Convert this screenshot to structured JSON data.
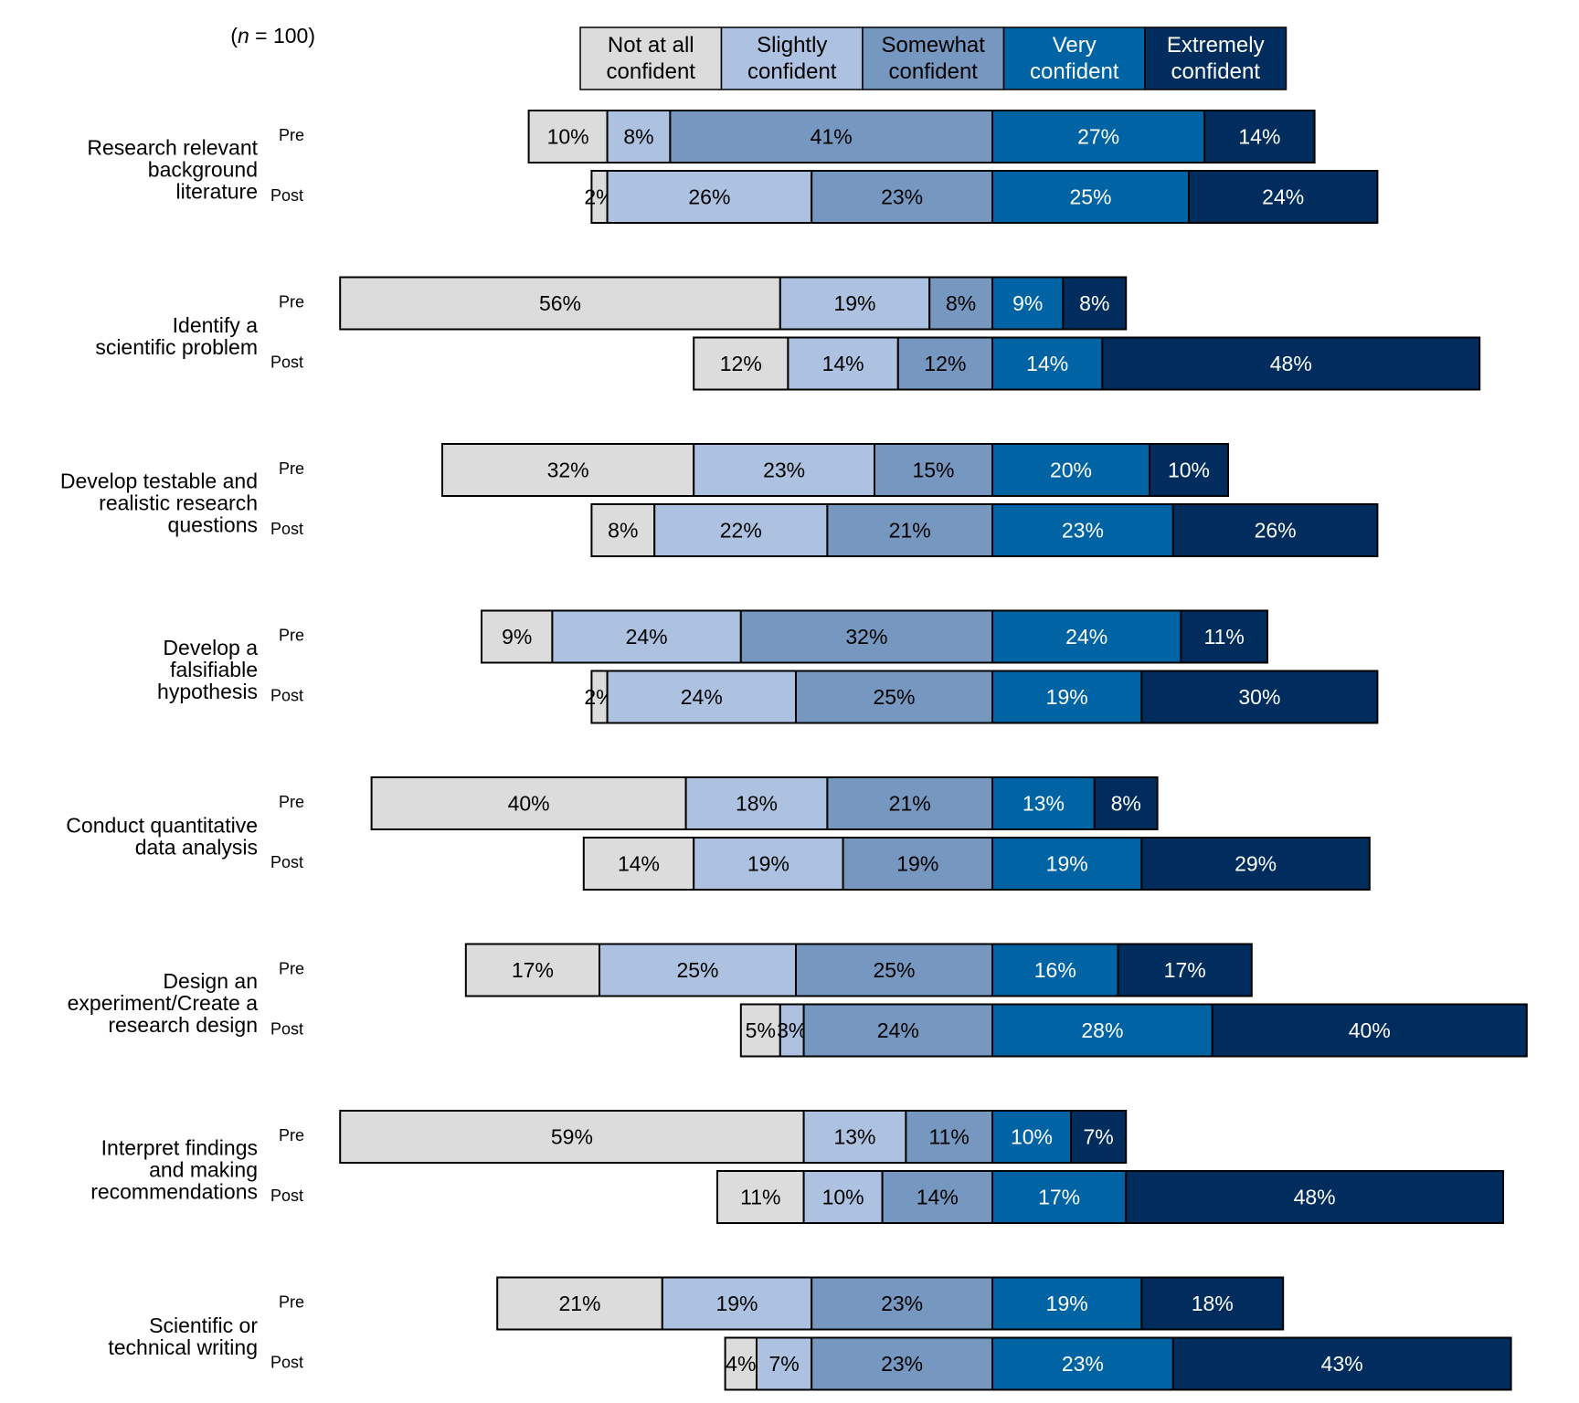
{
  "chart_data": {
    "type": "bar",
    "orientation": "horizontal",
    "stacked": true,
    "diverging": true,
    "sample_note": "(n = 100)",
    "legend": {
      "placement": "top",
      "entries": [
        {
          "key": "not_at_all",
          "line1": "Not at all",
          "line2": "confident",
          "color": "#dcdcdc",
          "text_color": "#000000"
        },
        {
          "key": "slightly",
          "line1": "Slightly",
          "line2": "confident",
          "color": "#adc2e0",
          "text_color": "#000000"
        },
        {
          "key": "somewhat",
          "line1": "Somewhat",
          "line2": "confident",
          "color": "#7697c0",
          "text_color": "#000000"
        },
        {
          "key": "very",
          "line1": "Very",
          "line2": "confident",
          "color": "#0063a4",
          "text_color": "#ffffff"
        },
        {
          "key": "extremely",
          "line1": "Extremely",
          "line2": "confident",
          "color": "#002d5e",
          "text_color": "#ffffff"
        }
      ]
    },
    "row_labels": {
      "pre": "Pre",
      "post": "Post"
    },
    "categories": [
      {
        "label": [
          "Research relevant",
          "background",
          "literature"
        ],
        "pre": [
          10,
          8,
          41,
          27,
          14
        ],
        "post": [
          2,
          26,
          23,
          25,
          24
        ]
      },
      {
        "label": [
          "Identify a",
          "scientific problem"
        ],
        "pre": [
          56,
          19,
          8,
          9,
          8
        ],
        "post": [
          12,
          14,
          12,
          14,
          48
        ]
      },
      {
        "label": [
          "Develop testable and",
          "realistic research",
          "questions"
        ],
        "pre": [
          32,
          23,
          15,
          20,
          10
        ],
        "post": [
          8,
          22,
          21,
          23,
          26
        ]
      },
      {
        "label": [
          "Develop a",
          "falsifiable",
          "hypothesis"
        ],
        "pre": [
          9,
          24,
          32,
          24,
          11
        ],
        "post": [
          2,
          24,
          25,
          19,
          30
        ]
      },
      {
        "label": [
          "Conduct quantitative",
          "data analysis"
        ],
        "pre": [
          40,
          18,
          21,
          13,
          8
        ],
        "post": [
          14,
          19,
          19,
          19,
          29
        ]
      },
      {
        "label": [
          "Design an",
          "experiment/Create a",
          "research design"
        ],
        "pre": [
          17,
          25,
          25,
          16,
          17
        ],
        "post": [
          5,
          3,
          24,
          28,
          40
        ]
      },
      {
        "label": [
          "Interpret findings",
          "and making",
          "recommendations"
        ],
        "pre": [
          59,
          13,
          11,
          10,
          7
        ],
        "post": [
          11,
          10,
          14,
          17,
          48
        ]
      },
      {
        "label": [
          "Scientific or",
          "technical writing"
        ],
        "pre": [
          21,
          19,
          23,
          19,
          18
        ],
        "post": [
          4,
          7,
          23,
          23,
          43
        ]
      }
    ],
    "value_suffix": "%"
  }
}
